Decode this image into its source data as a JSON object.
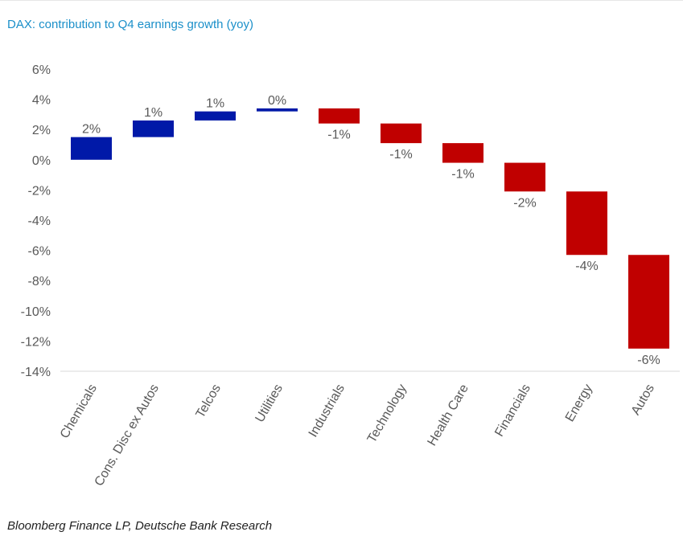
{
  "header": {
    "title": "DAX: contribution to Q4 earnings growth (yoy)"
  },
  "footer": {
    "source": "Bloomberg Finance LP, Deutsche Bank Research"
  },
  "colors": {
    "positive": "#0019a8",
    "negative": "#c00000",
    "axis": "#d9d9d9",
    "text": "#595959",
    "title": "#1a8fc9"
  },
  "chart_data": {
    "type": "bar",
    "subtype": "waterfall",
    "title": "DAX: contribution to Q4 earnings growth (yoy)",
    "xlabel": "",
    "ylabel": "",
    "ylim": [
      -14,
      6
    ],
    "y_ticks": [
      6,
      4,
      2,
      0,
      -2,
      -4,
      -6,
      -8,
      -10,
      -12,
      -14
    ],
    "y_tick_labels": [
      "6%",
      "4%",
      "2%",
      "0%",
      "-2%",
      "-4%",
      "-6%",
      "-8%",
      "-10%",
      "-12%",
      "-14%"
    ],
    "grid": false,
    "categories": [
      "Chemicals",
      "Cons. Disc ex Autos",
      "Telcos",
      "Utilities",
      "Industrials",
      "Technology",
      "Health Care",
      "Financials",
      "Energy",
      "Autos"
    ],
    "bars": [
      {
        "start": 0.0,
        "end": 1.5,
        "label": "2%"
      },
      {
        "start": 1.5,
        "end": 2.6,
        "label": "1%"
      },
      {
        "start": 2.6,
        "end": 3.2,
        "label": "1%"
      },
      {
        "start": 3.2,
        "end": 3.4,
        "label": "0%"
      },
      {
        "start": 3.4,
        "end": 2.4,
        "label": "-1%"
      },
      {
        "start": 2.4,
        "end": 1.1,
        "label": "-1%"
      },
      {
        "start": 1.1,
        "end": -0.2,
        "label": "-1%"
      },
      {
        "start": -0.2,
        "end": -2.1,
        "label": "-2%"
      },
      {
        "start": -2.1,
        "end": -6.3,
        "label": "-4%"
      },
      {
        "start": -6.3,
        "end": -12.5,
        "label": "-6%"
      }
    ]
  }
}
